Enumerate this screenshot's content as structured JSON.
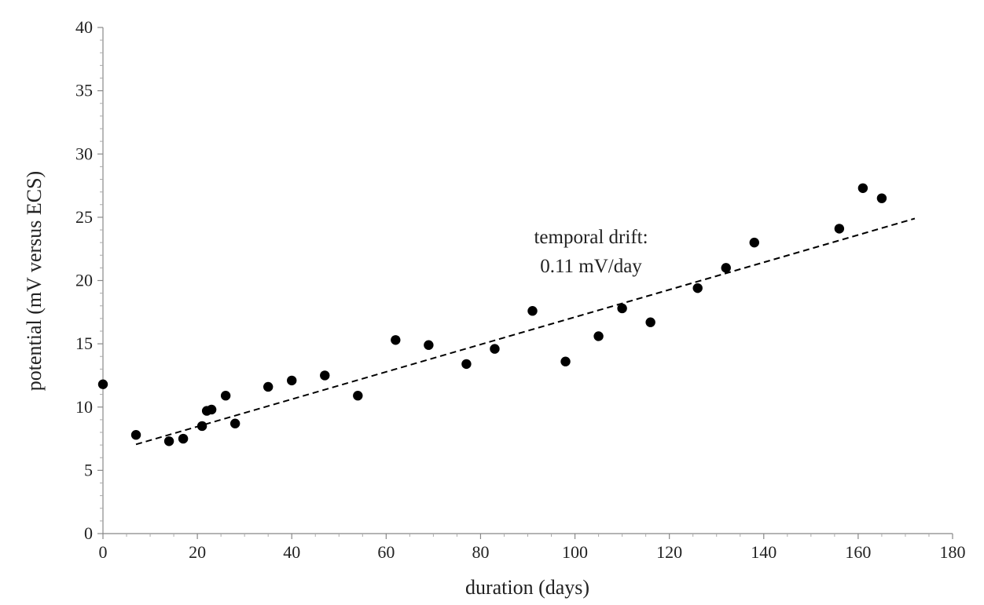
{
  "chart_data": {
    "type": "scatter",
    "title": "",
    "xlabel": "duration (days)",
    "ylabel": "potential (mV versus ECS)",
    "xlim": [
      0,
      180
    ],
    "ylim": [
      0,
      40
    ],
    "xticks": [
      0,
      20,
      40,
      60,
      80,
      100,
      120,
      140,
      160,
      180
    ],
    "yticks": [
      0,
      5,
      10,
      15,
      20,
      25,
      30,
      35,
      40
    ],
    "grid": false,
    "legend": "none",
    "marker_color": "#000000",
    "series": [
      {
        "x": [
          0,
          7,
          14,
          17,
          21,
          22,
          23,
          26,
          28,
          35,
          40,
          47,
          54,
          62,
          69,
          77,
          83,
          91,
          98,
          105,
          110,
          116,
          126,
          132,
          138,
          156,
          161,
          165
        ],
        "y": [
          11.8,
          7.8,
          7.3,
          7.5,
          8.5,
          9.7,
          9.8,
          10.9,
          8.7,
          11.6,
          12.1,
          12.5,
          10.9,
          15.3,
          14.9,
          13.4,
          14.6,
          17.6,
          13.6,
          15.6,
          17.8,
          16.7,
          19.4,
          21.0,
          23.0,
          24.1,
          27.3,
          26.5
        ]
      }
    ],
    "trendline": {
      "style": "dashed",
      "color": "#000000",
      "x": [
        7,
        172
      ],
      "y": [
        7.05,
        24.9
      ]
    },
    "annotation": {
      "lines": [
        "temporal drift:",
        "0.11 mV/day"
      ]
    }
  }
}
